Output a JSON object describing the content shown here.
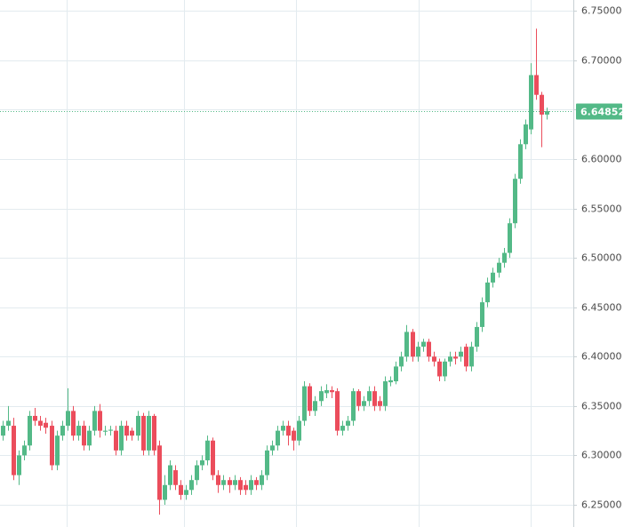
{
  "chart_data": {
    "type": "candlestick",
    "up_color": "#53b987",
    "down_color": "#eb4d5c",
    "grid": true,
    "y_axis_side": "right",
    "ylim": [
      6.2275,
      6.761
    ],
    "yticks": [
      {
        "value": 6.25,
        "label": "6.25000"
      },
      {
        "value": 6.3,
        "label": "6.30000"
      },
      {
        "value": 6.35,
        "label": "6.35000"
      },
      {
        "value": 6.4,
        "label": "6.40000"
      },
      {
        "value": 6.45,
        "label": "6.45000"
      },
      {
        "value": 6.5,
        "label": "6.50000"
      },
      {
        "value": 6.55,
        "label": "6.55000"
      },
      {
        "value": 6.6,
        "label": "6.60000"
      },
      {
        "value": 6.65,
        "label": "6.65000"
      },
      {
        "value": 6.7,
        "label": "6.70000"
      },
      {
        "value": 6.75,
        "label": "6.75000"
      }
    ],
    "last_price": 6.64852,
    "open": [
      6.32,
      6.33,
      6.33,
      6.28,
      6.3,
      6.31,
      6.34,
      6.335,
      6.333,
      6.33,
      6.29,
      6.32,
      6.33,
      6.345,
      6.32,
      6.33,
      6.31,
      6.325,
      6.345,
      6.324,
      6.325,
      6.325,
      6.305,
      6.33,
      6.325,
      6.32,
      6.34,
      6.305,
      6.34,
      6.31,
      6.255,
      6.27,
      6.285,
      6.27,
      6.26,
      6.265,
      6.275,
      6.29,
      6.295,
      6.315,
      6.28,
      6.27,
      6.275,
      6.27,
      6.275,
      6.27,
      6.265,
      6.275,
      6.27,
      6.28,
      6.305,
      6.31,
      6.325,
      6.33,
      6.325,
      6.315,
      6.335,
      6.37,
      6.345,
      6.355,
      6.363,
      6.366,
      6.365,
      6.325,
      6.33,
      6.335,
      6.365,
      6.35,
      6.355,
      6.365,
      6.355,
      6.35,
      6.374,
      6.375,
      6.39,
      6.4,
      6.425,
      6.4,
      6.41,
      6.415,
      6.4,
      6.395,
      6.38,
      6.395,
      6.4,
      6.4,
      6.41,
      6.39,
      6.41,
      6.43,
      6.455,
      6.475,
      6.485,
      6.495,
      6.505,
      6.535,
      6.58,
      6.615,
      6.63,
      6.685,
      6.665,
      6.645
    ],
    "high": [
      6.335,
      6.35,
      6.338,
      6.305,
      6.315,
      6.345,
      6.348,
      6.34,
      6.338,
      6.335,
      6.325,
      6.335,
      6.368,
      6.35,
      6.335,
      6.335,
      6.33,
      6.35,
      6.352,
      6.33,
      6.33,
      6.33,
      6.335,
      6.335,
      6.328,
      6.345,
      6.343,
      6.345,
      6.342,
      6.315,
      6.28,
      6.295,
      6.29,
      6.275,
      6.27,
      6.28,
      6.295,
      6.3,
      6.32,
      6.318,
      6.285,
      6.28,
      6.278,
      6.28,
      6.278,
      6.275,
      6.28,
      6.278,
      6.285,
      6.31,
      6.315,
      6.33,
      6.335,
      6.335,
      6.328,
      6.34,
      6.375,
      6.373,
      6.36,
      6.37,
      6.372,
      6.37,
      6.368,
      6.335,
      6.34,
      6.368,
      6.367,
      6.36,
      6.37,
      6.37,
      6.36,
      6.38,
      6.38,
      6.395,
      6.405,
      6.432,
      6.428,
      6.415,
      6.418,
      6.418,
      6.405,
      6.398,
      6.398,
      6.405,
      6.405,
      6.41,
      6.413,
      6.415,
      6.435,
      6.46,
      6.48,
      6.49,
      6.5,
      6.51,
      6.54,
      6.585,
      6.62,
      6.64,
      6.697,
      6.732,
      6.668,
      6.652
    ],
    "low": [
      6.315,
      6.325,
      6.275,
      6.27,
      6.295,
      6.305,
      6.33,
      6.325,
      6.322,
      6.285,
      6.285,
      6.315,
      6.325,
      6.315,
      6.315,
      6.305,
      6.305,
      6.32,
      6.318,
      6.32,
      6.32,
      6.3,
      6.3,
      6.315,
      6.315,
      6.315,
      6.3,
      6.3,
      6.3,
      6.24,
      6.25,
      6.265,
      6.265,
      6.255,
      6.255,
      6.26,
      6.27,
      6.285,
      6.29,
      6.275,
      6.262,
      6.265,
      6.262,
      6.265,
      6.26,
      6.26,
      6.26,
      6.265,
      6.265,
      6.275,
      6.3,
      6.305,
      6.32,
      6.31,
      6.305,
      6.31,
      6.33,
      6.34,
      6.34,
      6.35,
      6.358,
      6.358,
      6.32,
      6.32,
      6.325,
      6.33,
      6.345,
      6.345,
      6.35,
      6.345,
      6.345,
      6.345,
      6.37,
      6.372,
      6.385,
      6.395,
      6.395,
      6.395,
      6.405,
      6.395,
      6.39,
      6.375,
      6.375,
      6.39,
      6.392,
      6.395,
      6.385,
      6.385,
      6.405,
      6.425,
      6.45,
      6.47,
      6.48,
      6.49,
      6.5,
      6.53,
      6.575,
      6.61,
      6.625,
      6.66,
      6.612,
      6.64
    ],
    "close": [
      6.33,
      6.335,
      6.28,
      6.3,
      6.31,
      6.34,
      6.335,
      6.33,
      6.328,
      6.29,
      6.32,
      6.33,
      6.345,
      6.32,
      6.33,
      6.31,
      6.325,
      6.345,
      6.325,
      6.325,
      6.326,
      6.305,
      6.33,
      6.32,
      6.32,
      6.34,
      6.305,
      6.34,
      6.305,
      6.255,
      6.27,
      6.29,
      6.27,
      6.26,
      6.265,
      6.275,
      6.29,
      6.295,
      6.315,
      6.28,
      6.27,
      6.275,
      6.27,
      6.275,
      6.265,
      6.265,
      6.275,
      6.27,
      6.28,
      6.305,
      6.31,
      6.325,
      6.33,
      6.32,
      6.315,
      6.335,
      6.37,
      6.345,
      6.355,
      6.365,
      6.366,
      6.364,
      6.325,
      6.33,
      6.335,
      6.365,
      6.35,
      6.355,
      6.365,
      6.35,
      6.35,
      6.375,
      6.376,
      6.39,
      6.4,
      6.425,
      6.4,
      6.41,
      6.415,
      6.4,
      6.395,
      6.38,
      6.395,
      6.4,
      6.398,
      6.405,
      6.39,
      6.41,
      6.43,
      6.455,
      6.475,
      6.485,
      6.495,
      6.505,
      6.535,
      6.58,
      6.615,
      6.635,
      6.685,
      6.665,
      6.645,
      6.6485
    ]
  }
}
